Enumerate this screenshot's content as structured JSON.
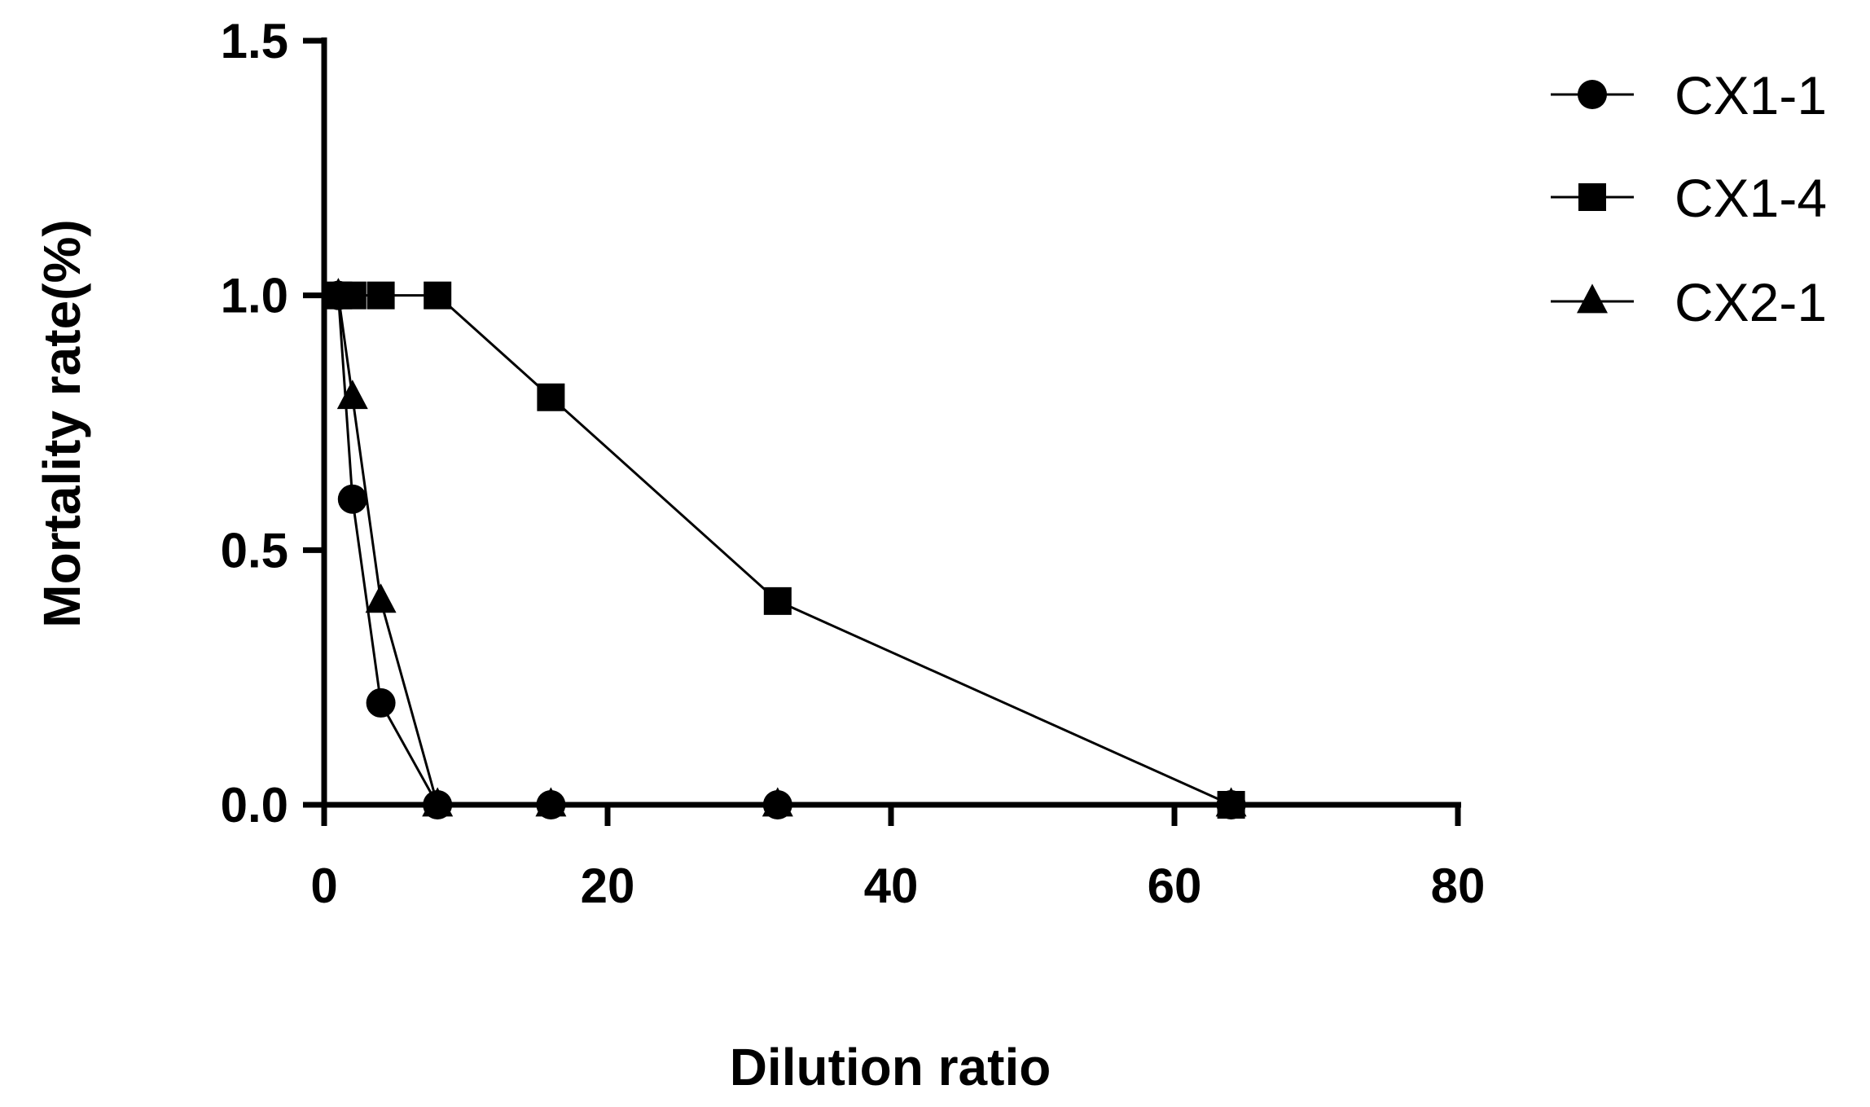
{
  "chart_data": {
    "type": "line",
    "xlabel": "Dilution ratio",
    "ylabel": "Mortality rate(%)",
    "xlim": [
      0,
      80
    ],
    "ylim": [
      0,
      1.5
    ],
    "xticks": [
      "0",
      "20",
      "40",
      "60",
      "80"
    ],
    "yticks": [
      "0.0",
      "0.5",
      "1.0",
      "1.5"
    ],
    "grid": false,
    "legend_position": "top-right",
    "series": [
      {
        "name": "CX1-1",
        "marker": "circle",
        "x": [
          1,
          2,
          4,
          8,
          16,
          32,
          64
        ],
        "y": [
          1.0,
          0.6,
          0.2,
          0.0,
          0.0,
          0.0,
          0.0
        ]
      },
      {
        "name": "CX1-4",
        "marker": "square",
        "x": [
          1,
          2,
          4,
          8,
          16,
          32,
          64
        ],
        "y": [
          1.0,
          1.0,
          1.0,
          1.0,
          0.8,
          0.4,
          0.0
        ]
      },
      {
        "name": "CX2-1",
        "marker": "triangle",
        "x": [
          1,
          2,
          4,
          8,
          16,
          32,
          64
        ],
        "y": [
          1.0,
          0.8,
          0.4,
          0.0,
          0.0,
          0.0,
          0.0
        ]
      }
    ]
  }
}
